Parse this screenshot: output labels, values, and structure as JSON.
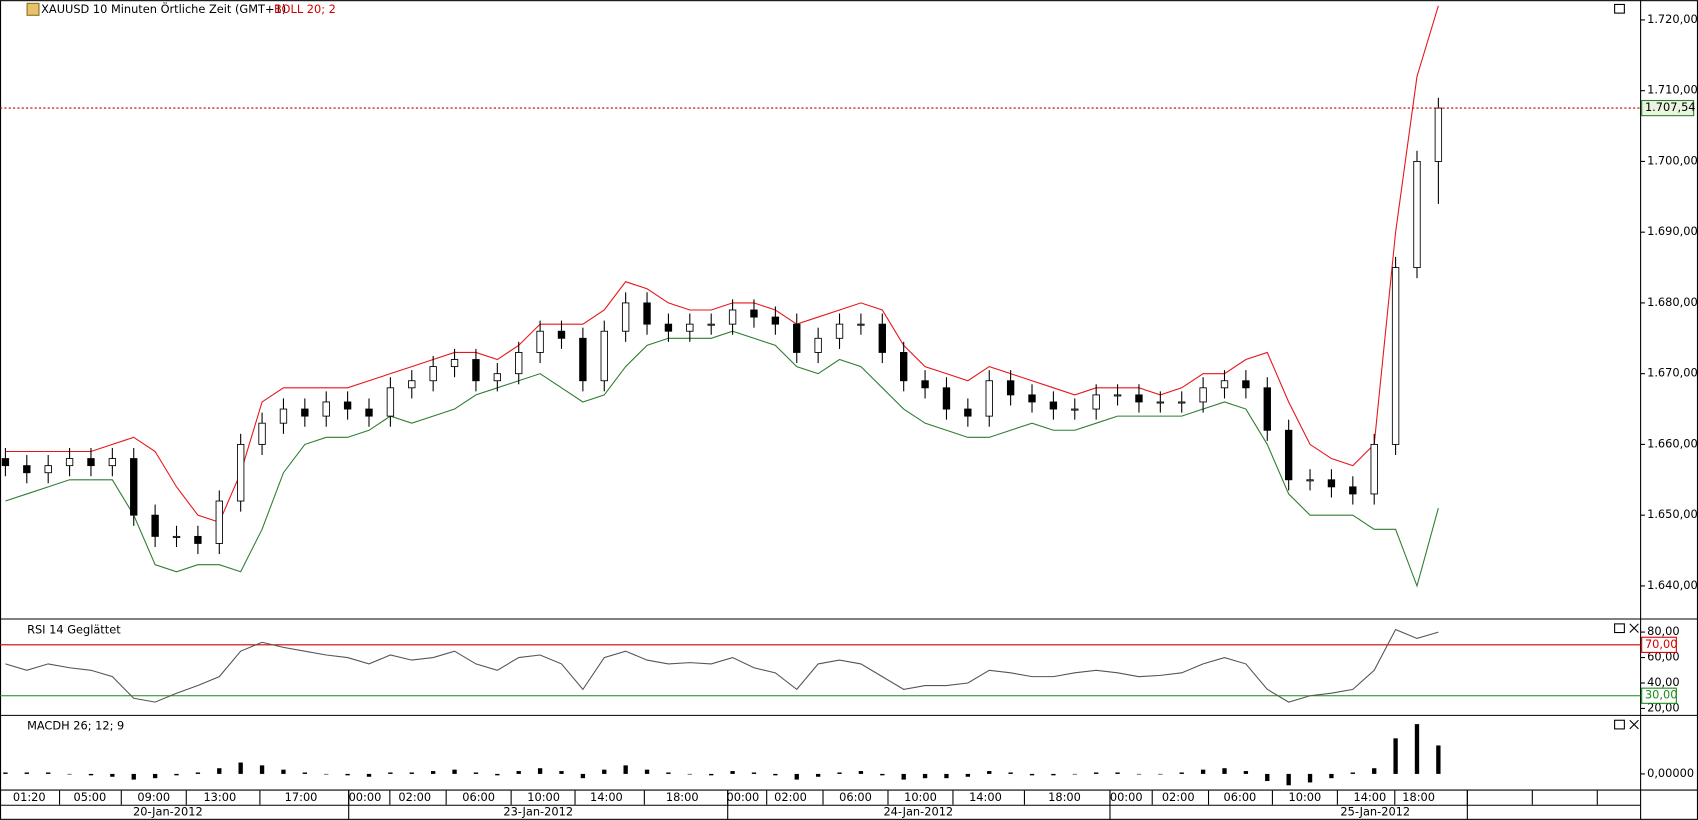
{
  "chart_data": [
    {
      "type": "candlestick",
      "title": "XAUUSD 10 Minuten Örtliche Zeit (GMT+1)",
      "indicator": "BOLL 20; 2",
      "indicator_color": "#d40000",
      "open": [
        1658,
        1657,
        1656,
        1657,
        1658,
        1657,
        1658,
        1650,
        1647,
        1647,
        1646,
        1652,
        1660,
        1663,
        1665,
        1664,
        1666,
        1665,
        1664,
        1668,
        1669,
        1671,
        1672,
        1669,
        1670,
        1673,
        1676,
        1675,
        1669,
        1676,
        1680,
        1677,
        1676,
        1677,
        1677,
        1679,
        1678,
        1677,
        1673,
        1675,
        1677,
        1677,
        1673,
        1669,
        1668,
        1665,
        1664,
        1669,
        1667,
        1666,
        1665,
        1665,
        1667,
        1667,
        1666,
        1666,
        1666,
        1668,
        1669,
        1668,
        1662,
        1655,
        1655,
        1654,
        1653,
        1660,
        1685,
        1700
      ],
      "high": [
        1659.5,
        1658.5,
        1658.5,
        1659.5,
        1659.5,
        1659.5,
        1659.5,
        1651.5,
        1648.5,
        1648.5,
        1653.5,
        1661.5,
        1664.5,
        1666.5,
        1666.5,
        1667.5,
        1667.5,
        1666.5,
        1669.5,
        1670.5,
        1672.5,
        1673.5,
        1673.5,
        1671.5,
        1674.5,
        1677.5,
        1677.5,
        1676.5,
        1677.5,
        1681.5,
        1681.5,
        1678.5,
        1678.5,
        1678.5,
        1680.5,
        1680.5,
        1679.5,
        1678.5,
        1676.5,
        1678.5,
        1678.5,
        1678.5,
        1674.5,
        1670.5,
        1669.5,
        1666.5,
        1670.5,
        1670.5,
        1668.5,
        1667.5,
        1666.5,
        1668.5,
        1668.5,
        1668.5,
        1667.5,
        1667.5,
        1669.5,
        1670.5,
        1670.5,
        1669.5,
        1663.5,
        1656.5,
        1656.5,
        1655.5,
        1661.5,
        1686.5,
        1701.5,
        1709
      ],
      "low": [
        1655.5,
        1654.5,
        1654.5,
        1655.5,
        1655.5,
        1655.5,
        1648.5,
        1645.5,
        1645.5,
        1644.5,
        1644.5,
        1650.5,
        1658.5,
        1661.5,
        1662.5,
        1662.5,
        1663.5,
        1662.5,
        1662.5,
        1666.5,
        1667.5,
        1669.5,
        1667.5,
        1667.5,
        1668.5,
        1671.5,
        1673.5,
        1667.5,
        1667.5,
        1674.5,
        1675.5,
        1674.5,
        1674.5,
        1675.5,
        1675.5,
        1676.5,
        1675.5,
        1671.5,
        1671.5,
        1673.5,
        1675.5,
        1671.5,
        1667.5,
        1666.5,
        1663.5,
        1662.5,
        1662.5,
        1665.5,
        1664.5,
        1663.5,
        1663.5,
        1663.5,
        1665.5,
        1664.5,
        1664.5,
        1664.5,
        1664.5,
        1666.5,
        1666.5,
        1660.5,
        1653.5,
        1653.5,
        1652.5,
        1651.5,
        1651.5,
        1658.5,
        1683.5,
        1694
      ],
      "close": [
        1657,
        1656,
        1657,
        1658,
        1657,
        1658,
        1650,
        1647,
        1647,
        1646,
        1652,
        1660,
        1663,
        1665,
        1664,
        1666,
        1665,
        1664,
        1668,
        1669,
        1671,
        1672,
        1669,
        1670,
        1673,
        1676,
        1675,
        1669,
        1676,
        1680,
        1677,
        1676,
        1677,
        1677,
        1679,
        1678,
        1677,
        1673,
        1675,
        1677,
        1677,
        1673,
        1669,
        1668,
        1665,
        1664,
        1669,
        1667,
        1666,
        1665,
        1665,
        1667,
        1667,
        1666,
        1666,
        1666,
        1668,
        1669,
        1668,
        1662,
        1655,
        1655,
        1654,
        1653,
        1660,
        1685,
        1700,
        1707.54
      ],
      "upper_band": {
        "color": "#e8141b",
        "values": [
          1659,
          1659,
          1659,
          1659,
          1659,
          1660,
          1661,
          1659,
          1654,
          1650,
          1649,
          1656,
          1666,
          1668,
          1668,
          1668,
          1668,
          1669,
          1670,
          1671,
          1672,
          1673,
          1673,
          1672,
          1674,
          1677,
          1677,
          1677,
          1679,
          1683,
          1682,
          1680,
          1679,
          1679,
          1680,
          1680,
          1679,
          1677,
          1678,
          1679,
          1680,
          1679,
          1674,
          1671,
          1670,
          1669,
          1671,
          1670,
          1669,
          1668,
          1667,
          1668,
          1668,
          1668,
          1667,
          1668,
          1670,
          1670,
          1672,
          1673,
          1666,
          1660,
          1658,
          1657,
          1660,
          1690,
          1712,
          1722
        ]
      },
      "lower_band": {
        "color": "#2e7d32",
        "values": [
          1652,
          1653,
          1654,
          1655,
          1655,
          1655,
          1650,
          1643,
          1642,
          1643,
          1643,
          1642,
          1648,
          1656,
          1660,
          1661,
          1661,
          1662,
          1664,
          1663,
          1664,
          1665,
          1667,
          1668,
          1669,
          1670,
          1668,
          1666,
          1667,
          1671,
          1674,
          1675,
          1675,
          1675,
          1676,
          1675,
          1674,
          1671,
          1670,
          1672,
          1671,
          1668,
          1665,
          1663,
          1662,
          1661,
          1661,
          1662,
          1663,
          1662,
          1662,
          1663,
          1664,
          1664,
          1664,
          1664,
          1665,
          1666,
          1665,
          1660,
          1653,
          1650,
          1650,
          1650,
          1648,
          1648,
          1640,
          1651
        ]
      },
      "last_price": {
        "value": 1707.54,
        "label": "1.707,54",
        "color": "#c00000"
      },
      "ylim": [
        1635.4,
        1722.8
      ],
      "yticks": [
        {
          "value": 1640,
          "label": "1.640,00"
        },
        {
          "value": 1650,
          "label": "1.650,00"
        },
        {
          "value": 1660,
          "label": "1.660,00"
        },
        {
          "value": 1670,
          "label": "1.670,00"
        },
        {
          "value": 1680,
          "label": "1.680,00"
        },
        {
          "value": 1690,
          "label": "1.690,00"
        },
        {
          "value": 1700,
          "label": "1.700,00"
        },
        {
          "value": 1710,
          "label": "1.710,00"
        },
        {
          "value": 1720,
          "label": "1.720,00"
        }
      ]
    },
    {
      "type": "line",
      "title": "RSI 14 Geglättet",
      "color": "#555555",
      "values": [
        55,
        50,
        55,
        52,
        50,
        45,
        28,
        25,
        32,
        38,
        45,
        65,
        72,
        68,
        65,
        62,
        60,
        55,
        62,
        58,
        60,
        65,
        55,
        50,
        60,
        62,
        55,
        35,
        60,
        65,
        58,
        55,
        56,
        55,
        60,
        52,
        48,
        35,
        55,
        58,
        55,
        45,
        35,
        38,
        38,
        40,
        50,
        48,
        45,
        45,
        48,
        50,
        48,
        45,
        46,
        48,
        55,
        60,
        55,
        35,
        25,
        30,
        32,
        35,
        50,
        82,
        75,
        80
      ],
      "levels": [
        {
          "value": 70,
          "label": "70,00",
          "color": "#d40000"
        },
        {
          "value": 30,
          "label": "30,00",
          "color": "#1a8a1a"
        }
      ],
      "ylim": [
        15,
        89
      ],
      "yticks": [
        {
          "value": 20,
          "label": "20,00"
        },
        {
          "value": 40,
          "label": "40,00"
        },
        {
          "value": 60,
          "label": "60,00"
        },
        {
          "value": 80,
          "label": "80,00"
        }
      ]
    },
    {
      "type": "bar",
      "title": "MACDH 26; 12; 9",
      "color": "#000000",
      "values": [
        0.1,
        0.1,
        0.1,
        0.0,
        -0.1,
        -0.2,
        -0.4,
        -0.3,
        -0.1,
        0.1,
        0.4,
        0.8,
        0.6,
        0.3,
        0.1,
        0.0,
        -0.1,
        -0.2,
        0.1,
        0.1,
        0.2,
        0.3,
        0.1,
        -0.1,
        0.2,
        0.4,
        0.2,
        -0.3,
        0.3,
        0.6,
        0.3,
        0.1,
        0.0,
        -0.1,
        0.2,
        0.1,
        -0.1,
        -0.4,
        -0.2,
        0.1,
        0.2,
        -0.1,
        -0.4,
        -0.3,
        -0.3,
        -0.2,
        0.2,
        0.1,
        -0.1,
        -0.1,
        0.0,
        0.1,
        0.1,
        0.0,
        0.0,
        0.1,
        0.3,
        0.4,
        0.2,
        -0.5,
        -0.8,
        -0.6,
        -0.3,
        0.1,
        0.4,
        2.5,
        3.5,
        2.0
      ],
      "ylim": [
        -1.1,
        4.0
      ],
      "yticks": [
        {
          "value": 0,
          "label": "0,00000"
        }
      ]
    }
  ],
  "time_axis": {
    "times": [
      "01:20",
      "05:00",
      "09:00",
      "13:00",
      "17:00",
      "00:00",
      "02:00",
      "06:00",
      "10:00",
      "14:00",
      "18:00",
      "00:00",
      "02:00",
      "06:00",
      "10:00",
      "14:00",
      "18:00",
      "00:00",
      "02:00",
      "06:00",
      "10:00",
      "14:00",
      "18:00"
    ],
    "dates": [
      "20-Jan-2012",
      "23-Jan-2012",
      "24-Jan-2012",
      "25-Jan-2012"
    ]
  }
}
